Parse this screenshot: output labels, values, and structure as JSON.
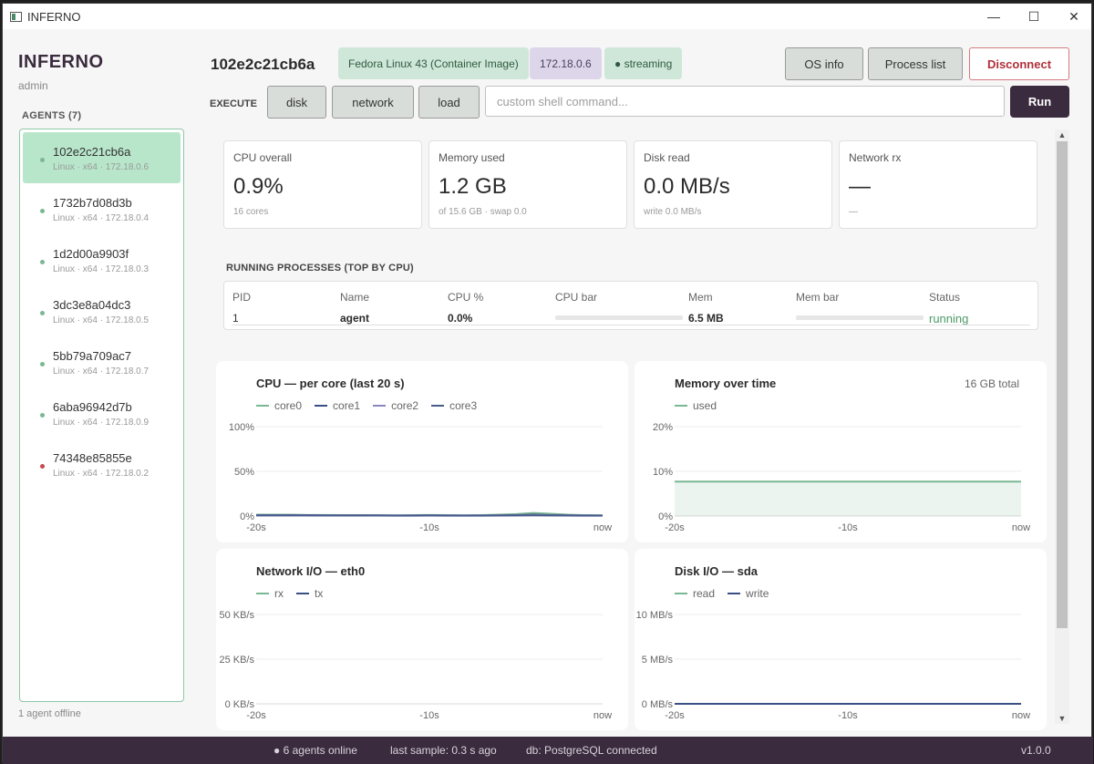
{
  "window": {
    "title": "INFERNO",
    "controls": {
      "minimize": "—",
      "maximize": "☐",
      "close": "✕"
    }
  },
  "sidebar": {
    "brand": "INFERNO",
    "user": "admin",
    "agents_header": "AGENTS (7)",
    "agents": [
      {
        "name": "102e2c21cb6a",
        "meta": "Linux · x64 · 172.18.0.6",
        "online": true,
        "active": true
      },
      {
        "name": "1732b7d08d3b",
        "meta": "Linux · x64 · 172.18.0.4",
        "online": true,
        "active": false
      },
      {
        "name": "1d2d00a9903f",
        "meta": "Linux · x64 · 172.18.0.3",
        "online": true,
        "active": false
      },
      {
        "name": "3dc3e8a04dc3",
        "meta": "Linux · x64 · 172.18.0.5",
        "online": true,
        "active": false
      },
      {
        "name": "5bb79a709ac7",
        "meta": "Linux · x64 · 172.18.0.7",
        "online": true,
        "active": false
      },
      {
        "name": "6aba96942d7b",
        "meta": "Linux · x64 · 172.18.0.9",
        "online": true,
        "active": false
      },
      {
        "name": "74348e85855e",
        "meta": "Linux · x64 · 172.18.0.2",
        "online": false,
        "active": false
      }
    ],
    "footer": "1 agent offline"
  },
  "header": {
    "host": "102e2c21cb6a",
    "os_pill": "Fedora Linux 43 (Container Image)",
    "ip_pill": "172.18.0.6",
    "stream_pill": "● streaming",
    "os_info_btn": "OS info",
    "process_list_btn": "Process list",
    "disconnect_btn": "Disconnect"
  },
  "execute": {
    "label": "EXECUTE",
    "disk": "disk",
    "network": "network",
    "load": "load",
    "placeholder": "custom shell command...",
    "run": "Run"
  },
  "stats": [
    {
      "label": "CPU overall",
      "value": "0.9%",
      "sub": "16 cores"
    },
    {
      "label": "Memory used",
      "value": "1.2 GB",
      "sub": "of 15.6 GB · swap 0.0"
    },
    {
      "label": "Disk read",
      "value": "0.0 MB/s",
      "sub": "write 0.0 MB/s"
    },
    {
      "label": "Network rx",
      "value": "—",
      "sub": "—"
    }
  ],
  "processes": {
    "header": "RUNNING PROCESSES (TOP BY CPU)",
    "columns": [
      "PID",
      "Name",
      "CPU %",
      "CPU bar",
      "Mem",
      "Mem bar",
      "Status"
    ],
    "rows": [
      {
        "pid": "1",
        "name": "agent",
        "cpu": "0.0%",
        "cpu_fraction": 0.0,
        "mem": "6.5 MB",
        "mem_fraction": 0.0,
        "status": "running"
      }
    ]
  },
  "colors": {
    "accent": "#3a2b3e",
    "green": "#7ab894",
    "green_light": "#b8e6cb",
    "disconnect": "#b0303a",
    "offline": "#c9484e",
    "running": "#4b9a66"
  },
  "chart_data": [
    {
      "type": "line",
      "title": "CPU — per core (last 20 s)",
      "x_ticks": [
        "-20s",
        "-10s",
        "now"
      ],
      "y_ticks": [
        "100%",
        "50%",
        "0%"
      ],
      "ylim": [
        0,
        100
      ],
      "series": [
        {
          "name": "core0",
          "color": "#7ab894",
          "values": [
            1.5,
            1.5,
            1.5,
            1.2,
            1.2,
            1.0,
            1.0,
            0.8,
            0.8,
            1.0,
            1.2,
            1.0,
            0.8,
            1.0,
            1.5,
            2.2,
            3.5,
            2.5,
            1.5,
            1.0,
            0.8
          ]
        },
        {
          "name": "core1",
          "color": "#3a4f86",
          "values": [
            1.0,
            1.0,
            1.0,
            1.0,
            0.8,
            0.8,
            0.8,
            0.8,
            0.6,
            0.6,
            0.8,
            0.6,
            0.6,
            0.6,
            0.8,
            1.0,
            1.5,
            1.0,
            0.8,
            0.6,
            0.6
          ]
        },
        {
          "name": "core2",
          "color": "#8a86c0",
          "values": [
            0.8,
            0.8,
            0.8,
            0.8,
            0.6,
            0.6,
            0.6,
            0.6,
            0.5,
            0.5,
            0.6,
            0.5,
            0.5,
            0.5,
            0.6,
            0.8,
            1.0,
            0.8,
            0.6,
            0.5,
            0.5
          ]
        },
        {
          "name": "core3",
          "color": "#4a5c8c",
          "values": [
            0.6,
            0.6,
            0.6,
            0.6,
            0.5,
            0.5,
            0.5,
            0.5,
            0.4,
            0.4,
            0.5,
            0.4,
            0.4,
            0.4,
            0.5,
            0.6,
            0.8,
            0.6,
            0.5,
            0.4,
            0.4
          ]
        }
      ],
      "grid": true,
      "legend": "top-left"
    },
    {
      "type": "area",
      "title": "Memory over time",
      "total": "16 GB total",
      "x_ticks": [
        "-20s",
        "-10s",
        "now"
      ],
      "y_ticks": [
        "20%",
        "10%",
        "0%"
      ],
      "ylim": [
        0,
        20
      ],
      "series": [
        {
          "name": "used",
          "color": "#7ab894",
          "values": [
            7.7,
            7.7,
            7.7,
            7.7,
            7.7,
            7.7,
            7.7,
            7.7,
            7.7,
            7.7,
            7.7,
            7.7,
            7.7,
            7.7,
            7.7,
            7.7,
            7.7,
            7.7,
            7.7,
            7.7,
            7.7
          ]
        }
      ],
      "grid": true,
      "legend": "top-left"
    },
    {
      "type": "line",
      "title": "Network I/O — eth0",
      "x_ticks": [
        "-20s",
        "-10s",
        "now"
      ],
      "y_ticks": [
        "50 KB/s",
        "25 KB/s",
        "0 KB/s"
      ],
      "ylim": [
        0,
        50
      ],
      "series": [
        {
          "name": "rx",
          "color": "#7ab894",
          "values": []
        },
        {
          "name": "tx",
          "color": "#3a4f86",
          "values": []
        }
      ],
      "grid": true,
      "legend": "top-left"
    },
    {
      "type": "line",
      "title": "Disk I/O — sda",
      "x_ticks": [
        "-20s",
        "-10s",
        "now"
      ],
      "y_ticks": [
        "10 MB/s",
        "5 MB/s",
        "0 MB/s"
      ],
      "ylim": [
        0,
        10
      ],
      "series": [
        {
          "name": "read",
          "color": "#7ab894",
          "values": [
            0,
            0,
            0,
            0,
            0,
            0,
            0,
            0,
            0,
            0,
            0,
            0,
            0,
            0,
            0,
            0,
            0,
            0,
            0,
            0,
            0
          ]
        },
        {
          "name": "write",
          "color": "#3a4f86",
          "values": [
            0,
            0,
            0,
            0,
            0,
            0,
            0,
            0,
            0,
            0,
            0,
            0,
            0,
            0,
            0,
            0,
            0,
            0,
            0,
            0,
            0
          ]
        }
      ],
      "grid": true,
      "legend": "top-left"
    }
  ],
  "statusbar": {
    "agents_online": "● 6 agents online",
    "last_sample": "last sample: 0.3 s ago",
    "db": "db: PostgreSQL connected",
    "version": "v1.0.0"
  }
}
